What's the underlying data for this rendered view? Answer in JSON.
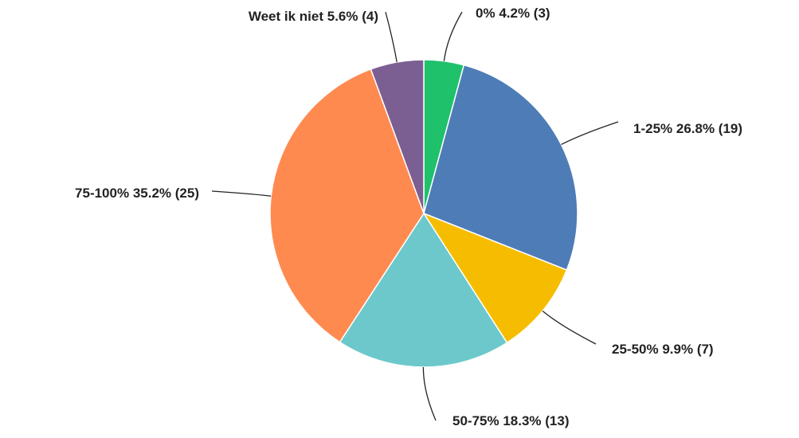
{
  "chart_data": {
    "type": "pie",
    "categories": [
      "0%",
      "1-25%",
      "25-50%",
      "50-75%",
      "75-100%",
      "Weet ik niet"
    ],
    "values": [
      4.2,
      26.8,
      9.9,
      18.3,
      35.2,
      5.6
    ],
    "value_labels": [
      "4.2% (3)",
      "26.8% (19)",
      "9.9% (7)",
      "18.3% (13)",
      "35.2% (25)",
      "5.6% (4)"
    ],
    "colors": [
      "#1fc16b",
      "#4e7cb6",
      "#f6bd00",
      "#6cc8cb",
      "#ff8a50",
      "#7b5f93"
    ]
  }
}
